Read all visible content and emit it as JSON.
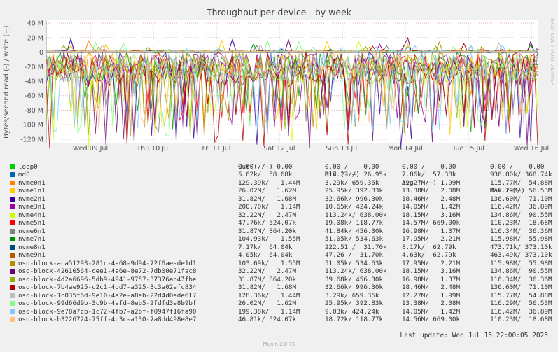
{
  "chart_data": {
    "type": "line",
    "title": "Throughput per device - by week",
    "ylabel": "Bytes/second read (-) / write (+)",
    "side_label": "RRDTOOL / TOBI OETIKER",
    "ylim": [
      -125,
      45
    ],
    "yticks": [
      "40 M",
      "20 M",
      "0",
      "-20 M",
      "-40 M",
      "-60 M",
      "-80 M",
      "-100 M",
      "-120 M"
    ],
    "ytick_values": [
      40,
      20,
      0,
      -20,
      -40,
      -60,
      -80,
      -100,
      -120
    ],
    "xticks": [
      "Wed 09 Jul",
      "Thu 10 Jul",
      "Fri 11 Jul",
      "Sat 12 Jul",
      "Sun 13 Jul",
      "Mon 14 Jul",
      "Tue 15 Jul",
      "Wed 16 Jul"
    ],
    "xtick_days": [
      1,
      2,
      3,
      4,
      5,
      6,
      7,
      8
    ],
    "x_days_range": [
      0.3,
      8.1
    ],
    "grid": true,
    "columns": [
      "Cur (-/+)",
      "Min (-/+)",
      "Avg (-/+)",
      "Max (-/+)"
    ],
    "series": [
      {
        "name": "loop0",
        "color": "#00cc00",
        "cur": "0.00 /    0.00",
        "min": "0.00 /    0.00",
        "avg": "0.00 /    0.00",
        "max": "0.00 /    0.00",
        "peak_read": 0,
        "peak_write": 0
      },
      {
        "name": "md0",
        "color": "#0066b3",
        "cur": "5.62k/  58.68k",
        "min": "317.23 /  26.95k",
        "avg": "7.86k/  57.38k",
        "max": "936.80k/ 368.74k",
        "peak_read": 0.9,
        "peak_write": 0.4
      },
      {
        "name": "nvme0n1",
        "color": "#ff8000",
        "cur": "129.39k/   1.44M",
        "min": "3.29k/ 659.36k",
        "avg": "12.27M/   1.99M",
        "max": "115.77M/  54.88M",
        "peak_read": 115.77,
        "peak_write": 54.88
      },
      {
        "name": "nvme1n1",
        "color": "#ffcc00",
        "cur": "26.02M/   1.62M",
        "min": "25.95k/ 392.83k",
        "avg": "13.38M/   2.08M",
        "max": "116.29M/  56.53M",
        "peak_read": 116.29,
        "peak_write": 56.53
      },
      {
        "name": "nvme2n1",
        "color": "#330099",
        "cur": "31.82M/   1.68M",
        "min": "32.66k/ 996.30k",
        "avg": "18.46M/   2.48M",
        "max": "136.60M/  71.10M",
        "peak_read": 136.6,
        "peak_write": 71.1
      },
      {
        "name": "nvme3n1",
        "color": "#990099",
        "cur": "200.70k/   1.14M",
        "min": "10.65k/ 424.24k",
        "avg": "14.05M/   1.42M",
        "max": "116.42M/  36.89M",
        "peak_read": 116.42,
        "peak_write": 36.89
      },
      {
        "name": "nvme4n1",
        "color": "#ccff00",
        "cur": "32.22M/   2.47M",
        "min": "113.24k/ 638.00k",
        "avg": "18.15M/   3.16M",
        "max": "134.86M/  90.55M",
        "peak_read": 134.86,
        "peak_write": 90.55
      },
      {
        "name": "nvme5n1",
        "color": "#ff0000",
        "cur": "47.76k/ 524.07k",
        "min": "19.08k/ 118.77k",
        "avg": "14.57M/ 669.00k",
        "max": "110.23M/  18.68M",
        "peak_read": 110.23,
        "peak_write": 18.68
      },
      {
        "name": "nvme6n1",
        "color": "#808080",
        "cur": "31.87M/ 864.20k",
        "min": "41.84k/ 456.30k",
        "avg": "16.98M/   1.37M",
        "max": "116.34M/  36.36M",
        "peak_read": 116.34,
        "peak_write": 36.36
      },
      {
        "name": "nvme7n1",
        "color": "#008f00",
        "cur": "104.93k/   1.55M",
        "min": "51.05k/ 534.63k",
        "avg": "17.95M/   2.21M",
        "max": "115.98M/  55.98M",
        "peak_read": 115.98,
        "peak_write": 55.98
      },
      {
        "name": "nvme8n1",
        "color": "#00487d",
        "cur": "7.17k/  64.04k",
        "min": "222.51 /  31.70k",
        "avg": "8.17k/  62.79k",
        "max": "473.71k/ 373.10k",
        "peak_read": 0.47,
        "peak_write": 0.37
      },
      {
        "name": "nvme9n1",
        "color": "#b35a00",
        "cur": "4.05k/  64.04k",
        "min": "47.26 /  31.70k",
        "avg": "4.63k/  62.79k",
        "max": "463.49k/ 373.10k",
        "peak_read": 0.46,
        "peak_write": 0.37
      },
      {
        "name": "osd-block-aca51293-281c-4a68-9d94-72f6aeade1d1",
        "color": "#b38f00",
        "cur": "103.69k/   1.55M",
        "min": "51.05k/ 534.63k",
        "avg": "17.95M/   2.21M",
        "max": "115.98M/  55.98M",
        "peak_read": 115.98,
        "peak_write": 55.98
      },
      {
        "name": "osd-block-42610564-cee1-4a6e-8e72-7db00e71fac8",
        "color": "#6b006b",
        "cur": "32.22M/   2.47M",
        "min": "113.24k/ 638.00k",
        "avg": "18.15M/   3.16M",
        "max": "134.86M/  90.55M",
        "peak_read": 134.86,
        "peak_write": 90.55
      },
      {
        "name": "osd-block-4d2a6696-5db9-4941-9757-37376ab47fbe",
        "color": "#8fb300",
        "cur": "31.87M/ 864.20k",
        "min": "39.68k/ 456.30k",
        "avg": "16.98M/   1.37M",
        "max": "116.34M/  36.36M",
        "peak_read": 116.34,
        "peak_write": 36.36
      },
      {
        "name": "osd-block-7b4ae925-c2c1-4dd7-a325-3c3a02efc834",
        "color": "#b30000",
        "cur": "31.82M/   1.68M",
        "min": "32.66k/ 996.30k",
        "avg": "18.46M/   2.48M",
        "max": "136.60M/  71.10M",
        "peak_read": 136.6,
        "peak_write": 71.1
      },
      {
        "name": "osd-block-1c035f6d-9e10-4a2e-a8eb-22d4d0ede617",
        "color": "#bebebe",
        "cur": "128.36k/   1.44M",
        "min": "3.29k/ 659.36k",
        "avg": "12.27M/   1.99M",
        "max": "115.77M/  54.88M",
        "peak_read": 115.77,
        "peak_write": 54.88
      },
      {
        "name": "osd-block-99d66d9b-3c9b-4afd-8eb5-2fdfd3e8b9bf",
        "color": "#80ff80",
        "cur": "26.02M/   1.62M",
        "min": "25.95k/ 392.83k",
        "avg": "13.38M/   2.08M",
        "max": "116.29M/  56.53M",
        "peak_read": 116.29,
        "peak_write": 56.53
      },
      {
        "name": "osd-block-9e78a7cb-1c72-4fb7-a2bf-f0947f16fa90",
        "color": "#80c9ff",
        "cur": "199.38k/   1.14M",
        "min": "9.03k/ 424.24k",
        "avg": "14.05M/   1.42M",
        "max": "116.42M/  36.89M",
        "peak_read": 116.42,
        "peak_write": 36.89
      },
      {
        "name": "osd-block-b3226724-75ff-4c3c-a130-7a8dd498e8e7",
        "color": "#ffc080",
        "cur": "46.81k/ 524.07k",
        "min": "18.72k/ 118.77k",
        "avg": "14.56M/ 669.00k",
        "max": "110.23M/  18.68M",
        "peak_read": 110.23,
        "peak_write": 18.68
      }
    ]
  },
  "footer": {
    "last_update": "Last update: Wed Jul 16 22:00:05 2025",
    "munin": "Munin 2.0.75"
  }
}
